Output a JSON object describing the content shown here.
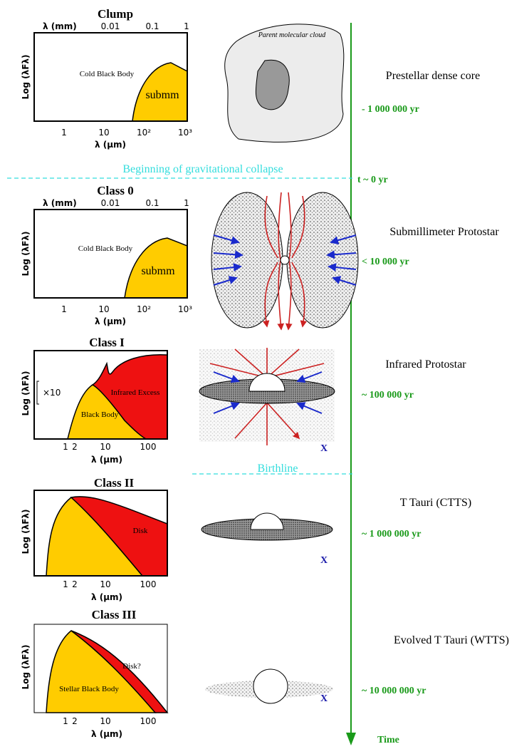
{
  "stages": [
    {
      "sed": {
        "title": "Clump",
        "top_axis_label": "λ (mm)",
        "top_ticks": [
          "0.01",
          "0.1",
          "1"
        ],
        "y_axis_label": "Log (λFλ)",
        "x_ticks": [
          "1",
          "10",
          "10²",
          "10³"
        ],
        "x_axis_label": "λ (μm)",
        "regions": [
          "Cold Black Body",
          "submm"
        ]
      },
      "name": "Prestellar dense core",
      "age": "- 1 000 000 yr"
    },
    {
      "sed": {
        "title": "Class 0",
        "top_axis_label": "λ (mm)",
        "top_ticks": [
          "0.01",
          "0.1",
          "1"
        ],
        "y_axis_label": "Log (λFλ)",
        "x_ticks": [
          "1",
          "10",
          "10²",
          "10³"
        ],
        "x_axis_label": "λ (μm)",
        "regions": [
          "Cold Black Body",
          "submm"
        ]
      },
      "name": "Submillimeter Protostar",
      "age": "< 10 000 yr"
    },
    {
      "sed": {
        "title": "Class I",
        "scale_label": "×10",
        "y_axis_label": "Log (λFλ)",
        "x_ticks": [
          "1",
          "2",
          "10",
          "100"
        ],
        "x_axis_label": "λ (μm)",
        "regions": [
          "Infrared Excess",
          "Black Body"
        ]
      },
      "name": "Infrared Protostar",
      "age": "~ 100 000 yr"
    },
    {
      "sed": {
        "title": "Class II",
        "y_axis_label": "Log (λFλ)",
        "x_ticks": [
          "1",
          "2",
          "10",
          "100"
        ],
        "x_axis_label": "λ (μm)",
        "regions": [
          "Disk"
        ]
      },
      "name": "T Tauri (CTTS)",
      "age": "~ 1 000 000 yr"
    },
    {
      "sed": {
        "title": "Class III",
        "y_axis_label": "Log (λFλ)",
        "x_ticks": [
          "1",
          "2",
          "10",
          "100"
        ],
        "x_axis_label": "λ (μm)",
        "regions": [
          "Disk?",
          "Stellar Black Body"
        ]
      },
      "name": "Evolved T Tauri (WTTS)",
      "age": "~ 10 000 000 yr"
    }
  ],
  "cloud_label": "Parent molecular cloud",
  "collapse_label": "Beginning of gravitational collapse",
  "collapse_time": "t ~ 0 yr",
  "birthline_label": "Birthline",
  "time_axis_label": "Time",
  "x_marks": [
    "X",
    "X",
    "X"
  ]
}
